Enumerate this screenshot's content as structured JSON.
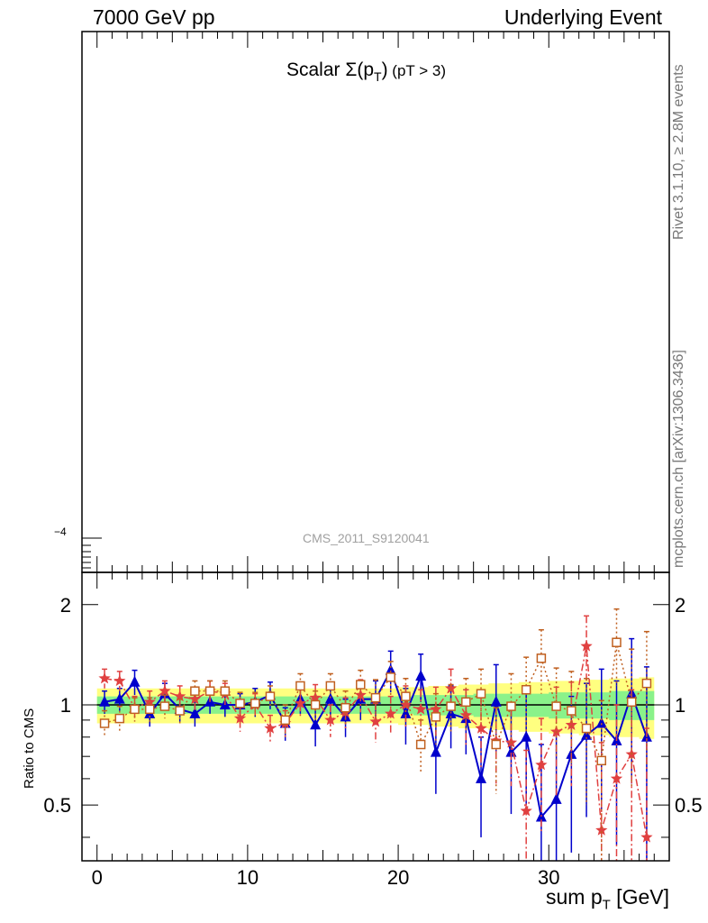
{
  "header": {
    "left": "7000 GeV pp",
    "right": "Underlying Event"
  },
  "plot": {
    "title_main": "Scalar ",
    "title_sigma": "Σ(p",
    "title_sub": "T",
    "title_close": ")",
    "title_cut": " (pT >  3)",
    "watermark": "CMS_2011_S9120041",
    "exponent_label": "−4"
  },
  "side_labels": {
    "rivet": "Rivet 3.1.10, ≥ 2.8M events",
    "mcplots": "mcplots.cern.ch [arXiv:1306.3436]"
  },
  "colors": {
    "band_inner": "#8af28a",
    "band_outer": "#ffff80",
    "series_blue": "#0000cc",
    "series_red": "#e04040",
    "series_brown": "#c06020"
  },
  "chart_data": {
    "type": "line",
    "xlabel": "sum p",
    "xlabel_sub": "T",
    "xlabel_unit": " [GeV]",
    "ylabel": "Ratio to CMS",
    "xlim": [
      -1,
      38
    ],
    "ylim": [
      0.34,
      2.5
    ],
    "x_ticks": [
      0,
      10,
      20,
      30
    ],
    "y_ticks": [
      0.5,
      1,
      2
    ],
    "y_tick_labels": [
      "0.5",
      "1",
      "2"
    ],
    "x": [
      0.5,
      1.5,
      2.5,
      3.5,
      4.5,
      5.5,
      6.5,
      7.5,
      8.5,
      9.5,
      10.5,
      11.5,
      12.5,
      13.5,
      14.5,
      15.5,
      16.5,
      17.5,
      18.5,
      19.5,
      20.5,
      21.5,
      22.5,
      23.5,
      24.5,
      25.5,
      26.5,
      27.5,
      28.5,
      29.5,
      30.5,
      31.5,
      32.5,
      33.5,
      34.5,
      35.5,
      36.5
    ],
    "band_inner": [
      0.06,
      0.06,
      0.06,
      0.06,
      0.06,
      0.06,
      0.06,
      0.06,
      0.06,
      0.06,
      0.06,
      0.06,
      0.06,
      0.06,
      0.06,
      0.06,
      0.06,
      0.06,
      0.06,
      0.06,
      0.06,
      0.07,
      0.07,
      0.07,
      0.07,
      0.08,
      0.08,
      0.08,
      0.08,
      0.08,
      0.09,
      0.09,
      0.09,
      0.09,
      0.1,
      0.1,
      0.1
    ],
    "band_outer": [
      0.12,
      0.12,
      0.12,
      0.12,
      0.12,
      0.12,
      0.12,
      0.12,
      0.12,
      0.12,
      0.12,
      0.12,
      0.12,
      0.12,
      0.12,
      0.12,
      0.12,
      0.12,
      0.12,
      0.12,
      0.13,
      0.13,
      0.14,
      0.14,
      0.15,
      0.15,
      0.16,
      0.16,
      0.17,
      0.17,
      0.18,
      0.18,
      0.19,
      0.19,
      0.2,
      0.2,
      0.21
    ],
    "series": [
      {
        "marker": "triangle",
        "values": [
          1.02,
          1.04,
          1.17,
          0.94,
          1.08,
          0.97,
          0.94,
          1.02,
          1.0,
          1.0,
          1.02,
          1.07,
          0.88,
          1.04,
          0.87,
          1.04,
          0.92,
          1.04,
          1.04,
          1.27,
          0.94,
          1.22,
          0.72,
          0.94,
          0.91,
          0.6,
          1.02,
          0.72,
          0.8,
          0.46,
          0.52,
          0.71,
          0.81,
          0.88,
          0.78,
          1.08,
          0.8
        ],
        "errors": [
          0.08,
          0.08,
          0.1,
          0.08,
          0.08,
          0.08,
          0.08,
          0.08,
          0.08,
          0.08,
          0.1,
          0.1,
          0.1,
          0.1,
          0.12,
          0.12,
          0.12,
          0.14,
          0.14,
          0.18,
          0.18,
          0.2,
          0.18,
          0.2,
          0.2,
          0.2,
          0.3,
          0.25,
          0.3,
          0.3,
          0.3,
          0.35,
          0.35,
          0.4,
          0.4,
          0.5,
          0.5
        ]
      },
      {
        "marker": "star",
        "values": [
          1.2,
          1.18,
          0.98,
          1.02,
          1.1,
          1.06,
          1.04,
          1.1,
          1.08,
          0.91,
          1.0,
          0.85,
          0.88,
          1.01,
          1.05,
          0.9,
          0.95,
          1.07,
          0.89,
          0.94,
          1.0,
          0.97,
          0.97,
          1.12,
          0.93,
          0.85,
          0.78,
          0.77,
          0.48,
          0.66,
          0.83,
          0.87,
          1.5,
          0.42,
          0.6,
          0.71,
          0.4
        ],
        "errors": [
          0.08,
          0.08,
          0.08,
          0.08,
          0.08,
          0.08,
          0.08,
          0.08,
          0.08,
          0.08,
          0.08,
          0.08,
          0.08,
          0.1,
          0.1,
          0.1,
          0.1,
          0.12,
          0.12,
          0.12,
          0.14,
          0.14,
          0.16,
          0.16,
          0.18,
          0.2,
          0.2,
          0.2,
          0.25,
          0.25,
          0.3,
          0.3,
          0.35,
          0.35,
          0.4,
          0.4,
          0.45
        ]
      },
      {
        "marker": "square",
        "values": [
          0.88,
          0.91,
          0.97,
          0.97,
          0.99,
          0.96,
          1.1,
          1.1,
          1.1,
          1.01,
          1.01,
          1.06,
          0.9,
          1.14,
          1.0,
          1.14,
          0.98,
          1.15,
          1.05,
          1.21,
          1.06,
          0.76,
          0.92,
          0.99,
          1.02,
          1.08,
          0.76,
          0.99,
          1.11,
          1.38,
          0.99,
          0.96,
          0.85,
          0.68,
          1.54,
          1.02,
          1.16
        ],
        "errors": [
          0.08,
          0.08,
          0.08,
          0.08,
          0.08,
          0.08,
          0.08,
          0.08,
          0.08,
          0.08,
          0.08,
          0.08,
          0.1,
          0.1,
          0.1,
          0.1,
          0.12,
          0.12,
          0.14,
          0.14,
          0.14,
          0.14,
          0.16,
          0.16,
          0.18,
          0.2,
          0.22,
          0.25,
          0.28,
          0.3,
          0.3,
          0.3,
          0.35,
          0.35,
          0.4,
          0.45,
          0.5
        ]
      }
    ]
  }
}
